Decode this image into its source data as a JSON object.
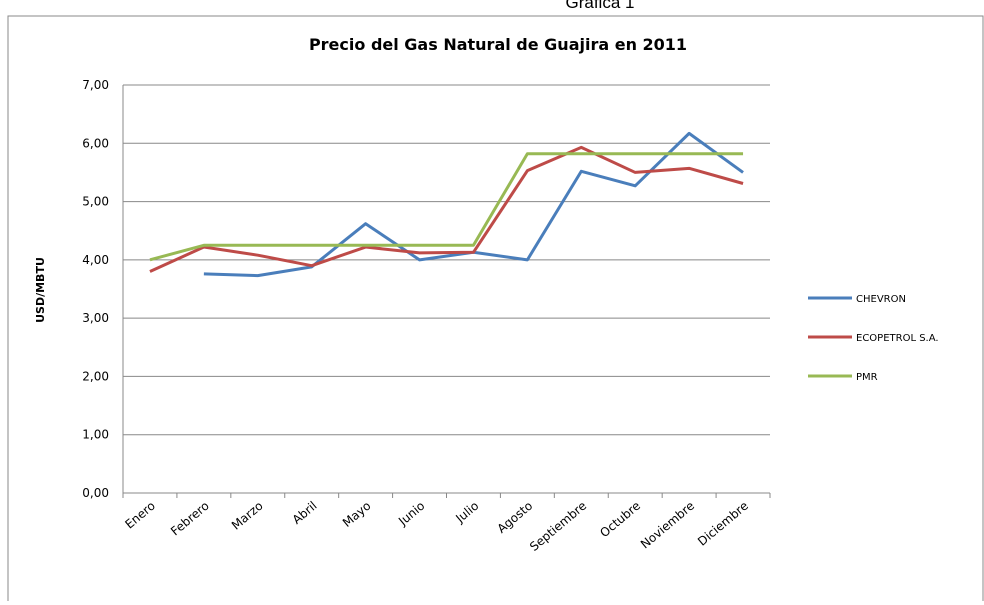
{
  "caption": "Gráfica 1",
  "chart_data": {
    "type": "line",
    "title": "Precio del Gas Natural de Guajira en 2011",
    "y_label": "USD/MBTU",
    "categories": [
      "Enero",
      "Febrero",
      "Marzo",
      "Abril",
      "Mayo",
      "Junio",
      "Julio",
      "Agosto",
      "Septiembre",
      "Octubre",
      "Noviembre",
      "Diciembre"
    ],
    "series": [
      {
        "name": "CHEVRON",
        "color": "#4a7ebb",
        "values": [
          null,
          3.76,
          3.73,
          3.88,
          4.62,
          4.0,
          4.13,
          4.0,
          5.52,
          5.27,
          6.17,
          5.5
        ]
      },
      {
        "name": "ECOPETROL S.A.",
        "color": "#be4b48",
        "values": [
          3.8,
          4.22,
          4.08,
          3.9,
          4.22,
          4.12,
          4.13,
          5.53,
          5.93,
          5.5,
          5.57,
          5.31
        ]
      },
      {
        "name": "PMR",
        "color": "#98b954",
        "values": [
          4.0,
          4.25,
          4.25,
          4.25,
          4.25,
          4.25,
          4.25,
          5.82,
          5.82,
          5.82,
          5.82,
          5.82
        ]
      }
    ],
    "ylim": [
      0,
      7
    ],
    "yticks": [
      {
        "value": 0,
        "label": "0,00"
      },
      {
        "value": 1,
        "label": "1,00"
      },
      {
        "value": 2,
        "label": "2,00"
      },
      {
        "value": 3,
        "label": "3,00"
      },
      {
        "value": 4,
        "label": "4,00"
      },
      {
        "value": 5,
        "label": "5,00"
      },
      {
        "value": 6,
        "label": "6,00"
      },
      {
        "value": 7,
        "label": "7,00"
      }
    ],
    "grid": true,
    "legend": "right"
  }
}
